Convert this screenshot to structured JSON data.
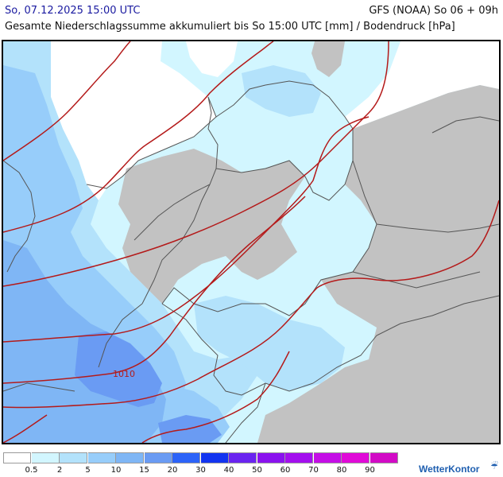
{
  "header": {
    "datetime": "So, 07.12.2025 15:00 UTC",
    "model": "GFS (NOAA) So 06 + 09h",
    "subtitle": "Gesamte Niederschlagssumme akkumuliert bis So 15:00 UTC [mm] / Bodendruck [hPa]"
  },
  "map": {
    "region": "Mitteleuropa / Deutschland",
    "isobar_labels": [
      "1010"
    ],
    "isobar_color": "#b41a1a",
    "land_no_data_color": "#c2c2c2",
    "border_color": "#555555",
    "coast_color": "#555555"
  },
  "legend": {
    "labels": [
      "0.5",
      "2",
      "5",
      "10",
      "15",
      "20",
      "30",
      "40",
      "50",
      "60",
      "70",
      "80",
      "90"
    ],
    "colors": [
      "#ffffff",
      "#d2f6ff",
      "#b3e2fb",
      "#97cdfa",
      "#7fb6f5",
      "#6a9bf3",
      "#2c63f8",
      "#1234f0",
      "#6a24f0",
      "#8a12ee",
      "#a30fee",
      "#c40ee6",
      "#e00ad8",
      "#d20ac6"
    ]
  },
  "brand": {
    "name": "WetterKontor",
    "icon": "rain-drop-icon"
  }
}
